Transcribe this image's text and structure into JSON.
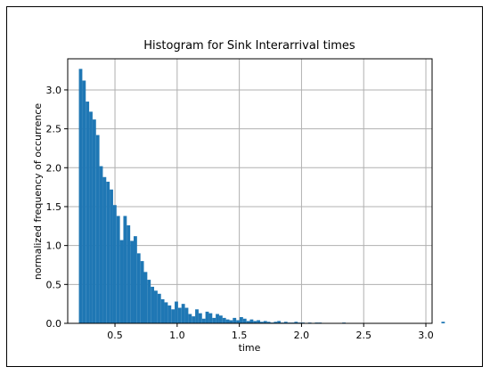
{
  "colors": {
    "bar": "#1f77b4",
    "grid": "#b0b0b0",
    "axis": "#000000",
    "frame": "#000000"
  },
  "chart_data": {
    "type": "bar",
    "title": "Histogram for Sink Interarrival times",
    "xlabel": "time",
    "ylabel": "normalized frequency of occurrence",
    "xlim": [
      0.12,
      3.05
    ],
    "ylim": [
      0,
      3.4
    ],
    "grid": true,
    "xticks": [
      0.5,
      1.0,
      1.5,
      2.0,
      2.5,
      3.0
    ],
    "xtick_labels": [
      "0.5",
      "1.0",
      "1.5",
      "2.0",
      "2.5",
      "3.0"
    ],
    "yticks": [
      0.0,
      0.5,
      1.0,
      1.5,
      2.0,
      2.5,
      3.0
    ],
    "ytick_labels": [
      "0.0",
      "0.5",
      "1.0",
      "1.5",
      "2.0",
      "2.5",
      "3.0"
    ],
    "bin_start": 0.21,
    "bin_width": 0.0275,
    "values": [
      3.27,
      3.12,
      2.85,
      2.72,
      2.62,
      2.42,
      2.02,
      1.88,
      1.82,
      1.72,
      1.52,
      1.38,
      1.07,
      1.38,
      1.26,
      1.06,
      1.12,
      0.9,
      0.8,
      0.66,
      0.56,
      0.47,
      0.42,
      0.38,
      0.31,
      0.27,
      0.23,
      0.18,
      0.28,
      0.2,
      0.25,
      0.2,
      0.12,
      0.09,
      0.18,
      0.13,
      0.06,
      0.15,
      0.13,
      0.07,
      0.12,
      0.1,
      0.07,
      0.05,
      0.04,
      0.07,
      0.04,
      0.08,
      0.06,
      0.03,
      0.05,
      0.03,
      0.04,
      0.02,
      0.03,
      0.02,
      0.01,
      0.02,
      0.03,
      0.01,
      0.02,
      0.01,
      0.01,
      0.02,
      0.01,
      0.01,
      0.0,
      0.01,
      0.0,
      0.01,
      0.01,
      0.0,
      0.0,
      0.0,
      0.0,
      0.0,
      0.0,
      0.01,
      0.0,
      0.0,
      0.0,
      0.0,
      0.0,
      0.0,
      0.0,
      0.0,
      0.0,
      0.0,
      0.0,
      0.0,
      0.0,
      0.0,
      0.0,
      0.0,
      0.0,
      0.0,
      0.0,
      0.0,
      0.0,
      0.0,
      0.0,
      0.0,
      0.0,
      0.0,
      0.0,
      0.0,
      0.02,
      0.0
    ]
  }
}
